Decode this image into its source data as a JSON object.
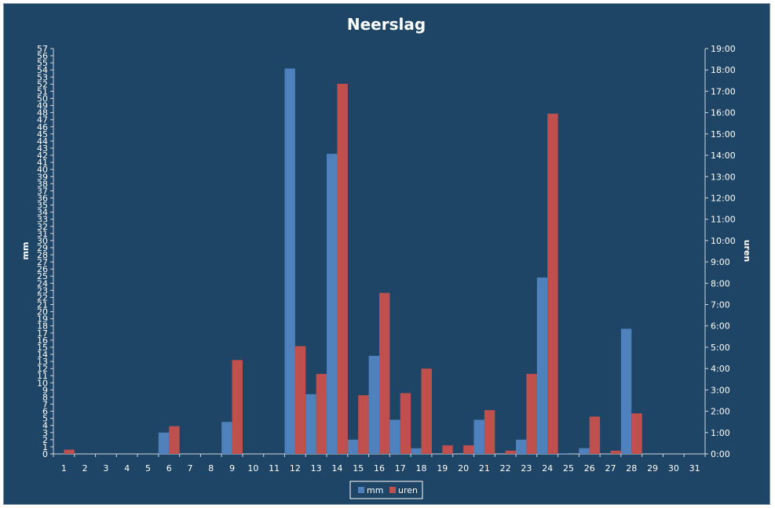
{
  "chart_data": {
    "type": "bar",
    "title": "Neerslag",
    "ylabel": "mm",
    "y2label": "uren",
    "ylim": [
      0,
      57
    ],
    "y2lim_hours": [
      0,
      19
    ],
    "y2_ticks": [
      "0:00",
      "1:00",
      "2:00",
      "3:00",
      "4:00",
      "5:00",
      "6:00",
      "7:00",
      "8:00",
      "9:00",
      "10:00",
      "11:00",
      "12:00",
      "13:00",
      "14:00",
      "15:00",
      "16:00",
      "17:00",
      "18:00",
      "19:00"
    ],
    "categories": [
      "1",
      "2",
      "3",
      "4",
      "5",
      "6",
      "7",
      "8",
      "9",
      "10",
      "11",
      "12",
      "13",
      "14",
      "15",
      "16",
      "17",
      "18",
      "19",
      "20",
      "21",
      "22",
      "23",
      "24",
      "25",
      "26",
      "27",
      "28",
      "29",
      "30",
      "31"
    ],
    "series": [
      {
        "name": "mm",
        "axis": "left",
        "color": "#4F81BD",
        "values": [
          0,
          0,
          0,
          0,
          0,
          3,
          0,
          0,
          4.5,
          0,
          0,
          54.2,
          8.4,
          42.2,
          2,
          13.8,
          4.8,
          0.8,
          0,
          0,
          4.8,
          0,
          2,
          24.8,
          0.1,
          0.8,
          0,
          17.6,
          0,
          0,
          0
        ]
      },
      {
        "name": "uren",
        "axis": "right",
        "color": "#C0504D",
        "values_hours": [
          0.2,
          0,
          0,
          0,
          0,
          1.3,
          0,
          0,
          4.4,
          0,
          0,
          5.05,
          3.75,
          17.35,
          2.75,
          7.55,
          2.85,
          4.0,
          0.4,
          0.4,
          2.05,
          0.15,
          3.75,
          15.95,
          0,
          1.75,
          0.15,
          1.9,
          0,
          0,
          0
        ]
      }
    ],
    "legend_position": "bottom",
    "grid": false
  }
}
